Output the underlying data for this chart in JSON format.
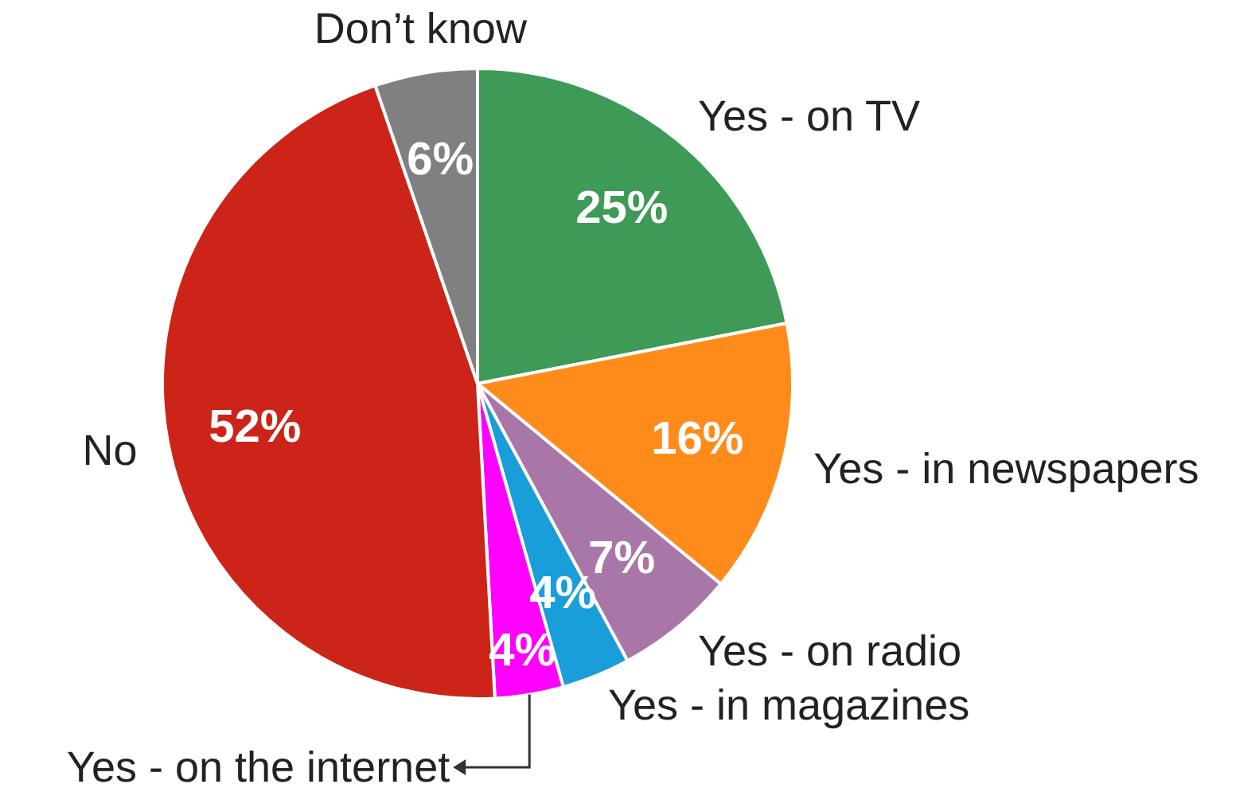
{
  "chart_data": {
    "type": "pie",
    "categories": [
      "Yes - on TV",
      "Yes - in newspapers",
      "Yes - on radio",
      "Yes - in magazines",
      "Yes - on the internet",
      "No",
      "Don’t know"
    ],
    "values": [
      25,
      16,
      7,
      4,
      4,
      52,
      6
    ],
    "value_labels": [
      "25%",
      "16%",
      "7%",
      "4%",
      "4%",
      "52%",
      "6%"
    ],
    "colors": [
      "#3d9a57",
      "#ff8c1a",
      "#a877a8",
      "#1a9ed9",
      "#ff00ff",
      "#cc2418",
      "#808080"
    ]
  }
}
